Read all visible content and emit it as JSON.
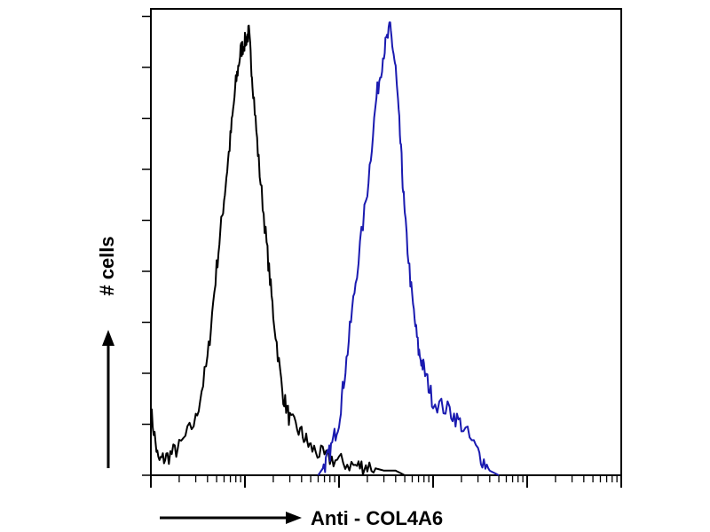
{
  "chart_data": {
    "type": "line",
    "title": "",
    "xlabel": "Anti - COL4A6",
    "ylabel": "# cells",
    "x_scale": "log",
    "xlim": [
      1,
      100000
    ],
    "ylim": [
      0,
      100
    ],
    "grid": false,
    "legend": "none",
    "series": [
      {
        "color": "#000000",
        "x": [
          1,
          1.2,
          1.5,
          2,
          3,
          4,
          5,
          6,
          7,
          8,
          9,
          10,
          11,
          12,
          14,
          17,
          20,
          25,
          30,
          40,
          50,
          70,
          100,
          150,
          200,
          300,
          400,
          500
        ],
        "y": [
          14,
          3,
          4,
          6,
          12,
          25,
          45,
          60,
          73,
          85,
          92,
          94,
          96,
          86,
          68,
          50,
          35,
          18,
          12,
          9,
          6,
          4,
          3,
          2,
          2,
          1,
          1,
          0
        ]
      },
      {
        "color": "#1a1ab0",
        "x": [
          60,
          70,
          80,
          100,
          120,
          150,
          200,
          250,
          300,
          350,
          400,
          450,
          500,
          600,
          700,
          800,
          1000,
          1500,
          2000,
          3000,
          4000,
          5000
        ],
        "y": [
          0,
          2,
          5,
          12,
          25,
          42,
          62,
          82,
          92,
          97,
          88,
          72,
          56,
          38,
          27,
          23,
          16,
          14,
          11,
          5,
          1,
          0
        ]
      }
    ]
  }
}
